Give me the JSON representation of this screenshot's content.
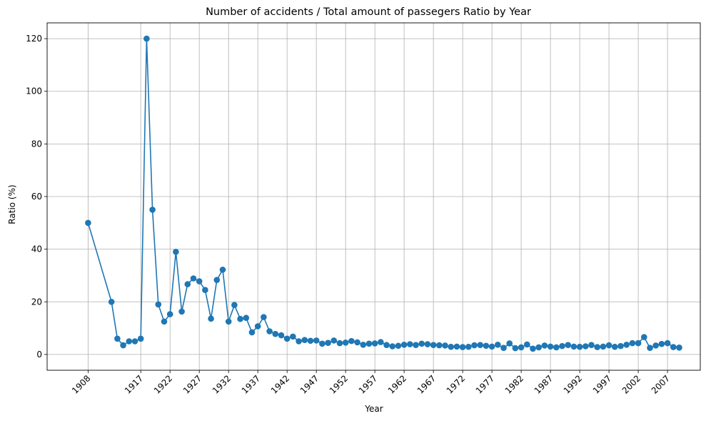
{
  "chart_data": {
    "type": "line",
    "title": "Number of accidents / Total amount of passegers Ratio by Year",
    "xlabel": "Year",
    "ylabel": "Ratio (%)",
    "x_ticks": [
      1908,
      1917,
      1922,
      1927,
      1932,
      1937,
      1942,
      1947,
      1952,
      1957,
      1962,
      1967,
      1972,
      1977,
      1982,
      1987,
      1992,
      1997,
      2002,
      2007
    ],
    "y_ticks": [
      0,
      20,
      40,
      60,
      80,
      100,
      120
    ],
    "xlim": [
      1901.0,
      2012.6
    ],
    "ylim": [
      -6,
      126
    ],
    "grid": true,
    "colors": {
      "line": "#1f77b4",
      "grid": "#b0b0b0"
    },
    "series": [
      {
        "name": "",
        "x": [
          1908,
          1912,
          1913,
          1914,
          1915,
          1916,
          1917,
          1918,
          1919,
          1920,
          1921,
          1922,
          1923,
          1924,
          1925,
          1926,
          1927,
          1928,
          1929,
          1930,
          1931,
          1932,
          1933,
          1934,
          1935,
          1936,
          1937,
          1938,
          1939,
          1940,
          1941,
          1942,
          1943,
          1944,
          1945,
          1946,
          1947,
          1948,
          1949,
          1950,
          1951,
          1952,
          1953,
          1954,
          1955,
          1956,
          1957,
          1958,
          1959,
          1960,
          1961,
          1962,
          1963,
          1964,
          1965,
          1966,
          1967,
          1968,
          1969,
          1970,
          1971,
          1972,
          1973,
          1974,
          1975,
          1976,
          1977,
          1978,
          1979,
          1980,
          1981,
          1982,
          1983,
          1984,
          1985,
          1986,
          1987,
          1988,
          1989,
          1990,
          1991,
          1992,
          1993,
          1994,
          1995,
          1996,
          1997,
          1998,
          1999,
          2000,
          2001,
          2002,
          2003,
          2004,
          2005,
          2006,
          2007,
          2008,
          2009
        ],
        "y": [
          50,
          20,
          6,
          3.5,
          5,
          5,
          6,
          120,
          55,
          19,
          12.5,
          15.3,
          39,
          16.3,
          26.7,
          28.9,
          27.8,
          24.5,
          13.6,
          28.3,
          32.2,
          12.5,
          18.8,
          13.5,
          13.9,
          8.4,
          10.7,
          14.2,
          8.8,
          7.8,
          7.3,
          6,
          6.8,
          5,
          5.5,
          5.2,
          5.3,
          4.1,
          4.4,
          5.3,
          4.3,
          4.5,
          5.1,
          4.6,
          3.7,
          4.1,
          4.2,
          4.7,
          3.6,
          3.1,
          3.3,
          3.7,
          3.9,
          3.6,
          4.1,
          3.9,
          3.6,
          3.5,
          3.4,
          2.9,
          3,
          2.8,
          2.9,
          3.5,
          3.6,
          3.3,
          3,
          3.7,
          2.5,
          4.2,
          2.4,
          2.7,
          3.8,
          2.2,
          2.7,
          3.4,
          3,
          2.7,
          3.2,
          3.6,
          3,
          2.9,
          3.1,
          3.6,
          2.8,
          3,
          3.5,
          2.9,
          3.2,
          3.7,
          4.3,
          4.3,
          6.6,
          2.5,
          3.4,
          4,
          4.3,
          2.8,
          2.6
        ]
      }
    ]
  }
}
